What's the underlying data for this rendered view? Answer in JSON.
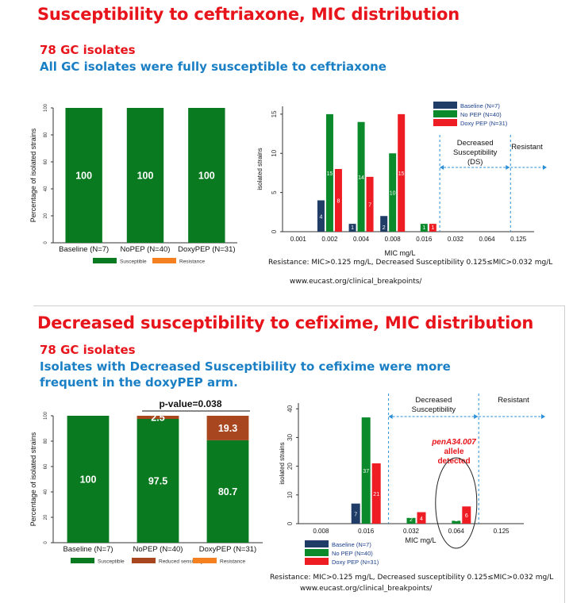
{
  "slide1": {
    "title": "Susceptibility to ceftriaxone, MIC distribution",
    "isolates": "78 GC isolates",
    "subtitle": "All GC isolates were fully susceptible to ceftriaxone",
    "footer_resistance": "Resistance: MIC>0.125 mg/L, Decreased Susceptibility 0.125≤MIC>0.032 mg/L",
    "footer_url": "www.eucast.org/clinical_breakpoints/"
  },
  "slide2": {
    "title": "Decreased susceptibility to cefixime, MIC distribution",
    "isolates": "78 GC isolates",
    "subtitle_line1": "Isolates with Decreased Susceptibility to cefixime were more",
    "subtitle_line2": "frequent in the doxyPEP arm.",
    "footer_resistance": "Resistance: MIC>0.125 mg/L, Decreased susceptibility 0.125≤MIC>0.032 mg/L",
    "footer_url": "www.eucast.org/clinical_breakpoints/"
  },
  "colors": {
    "susceptible": "#0a7a20",
    "resistance": "#f4801f",
    "reduced": "#a8461f",
    "baseline": "#1f3d66",
    "nopep": "#0a8a2a",
    "doxypep": "#ee1c23",
    "arrow": "#2a8fd6"
  },
  "chart_data": [
    {
      "id": "ceftriaxone_stacked",
      "type": "bar",
      "stacked": true,
      "categories": [
        "Baseline (N=7)",
        "NoPEP (N=40)",
        "DoxyPEP (N=31)"
      ],
      "series": [
        {
          "name": "Susceptible",
          "values": [
            100,
            100,
            100
          ],
          "labels": [
            "100",
            "100",
            "100"
          ]
        },
        {
          "name": "Resistance",
          "values": [
            0,
            0,
            0
          ],
          "labels": [
            "",
            "",
            ""
          ]
        }
      ],
      "ylabel": "Percentage of isolated strains",
      "yticks": [
        "0",
        "20",
        "40",
        "60",
        "80",
        "100"
      ],
      "ylim": [
        0,
        100
      ],
      "legend": "bottom"
    },
    {
      "id": "ceftriaxone_mic",
      "type": "bar",
      "categories": [
        "0.001",
        "0.002",
        "0.004",
        "0.008",
        "0.016",
        "0.032",
        "0.064",
        "0.125"
      ],
      "series": [
        {
          "name": "Baseline (N=7)",
          "values": [
            0,
            4,
            1,
            2,
            0,
            0,
            0,
            0
          ]
        },
        {
          "name": "No PEP (N=40)",
          "values": [
            0,
            15,
            14,
            10,
            1,
            0,
            0,
            0
          ]
        },
        {
          "name": "Doxy PEP (N=31)",
          "values": [
            0,
            8,
            7,
            15,
            1,
            0,
            0,
            0
          ]
        }
      ],
      "xlabel": "MIC mg/L",
      "ylabel": "isolated strains",
      "yticks": [
        "0",
        "5",
        "10",
        "15"
      ],
      "ylim": [
        0,
        16
      ],
      "legend": "top-right",
      "zones": [
        {
          "label_lines": [
            "Decreased",
            "Susceptibility",
            "(DS)"
          ]
        },
        {
          "label_lines": [
            "Resistant"
          ]
        }
      ]
    },
    {
      "id": "cefixime_stacked",
      "type": "bar",
      "stacked": true,
      "categories": [
        "Baseline (N=7)",
        "NoPEP (N=40)",
        "DoxyPEP (N=31)"
      ],
      "series": [
        {
          "name": "Susceptible",
          "values": [
            100,
            97.5,
            80.7
          ],
          "labels": [
            "100",
            "97.5",
            "80.7"
          ]
        },
        {
          "name": "Reduced sensitivity",
          "values": [
            0,
            2.5,
            19.3
          ],
          "labels": [
            "",
            "2.5",
            "19.3"
          ]
        },
        {
          "name": "Resistance",
          "values": [
            0,
            0,
            0
          ],
          "labels": [
            "",
            "",
            ""
          ]
        }
      ],
      "ylabel": "Percentage of isolated strains",
      "yticks": [
        "0",
        "20",
        "40",
        "60",
        "80",
        "100"
      ],
      "ylim": [
        0,
        100
      ],
      "legend": "bottom",
      "annotation": "p-value=0.038"
    },
    {
      "id": "cefixime_mic",
      "type": "bar",
      "categories": [
        "0.008",
        "0.016",
        "0.032",
        "0.064",
        "0.125"
      ],
      "series": [
        {
          "name": "Baseline (N=7)",
          "values": [
            0,
            7,
            0,
            0,
            0
          ]
        },
        {
          "name": "No PEP (N=40)",
          "values": [
            0,
            37,
            2,
            1,
            0
          ]
        },
        {
          "name": "Doxy PEP (N=31)",
          "values": [
            0,
            21,
            4,
            6,
            0
          ]
        }
      ],
      "xlabel": "MIC mg/L",
      "ylabel": "isolated strains",
      "yticks": [
        "0",
        "10",
        "20",
        "30",
        "40"
      ],
      "ylim": [
        0,
        42
      ],
      "legend": "bottom-left",
      "zones": [
        {
          "label_lines": [
            "Decreased",
            "Susceptibility"
          ]
        },
        {
          "label_lines": [
            "Resistant"
          ]
        }
      ],
      "annotation_lines": [
        "penA34.007",
        "allele",
        "detected"
      ]
    }
  ]
}
